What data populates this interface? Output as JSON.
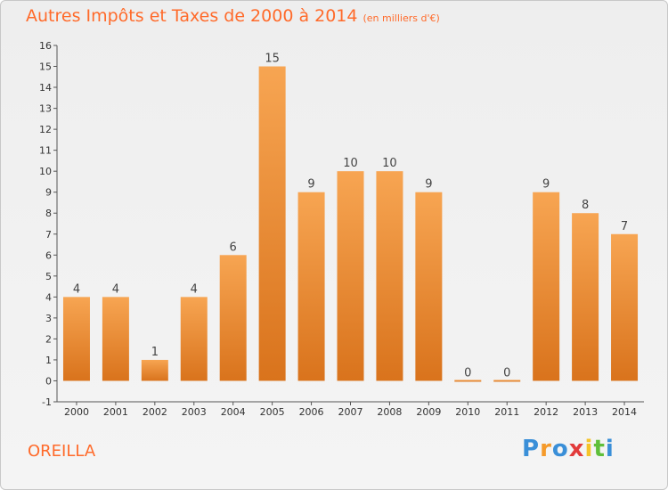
{
  "title": {
    "main": "Autres Impôts et Taxes de 2000 à 2014",
    "unit": "(en milliers d'€)"
  },
  "commune": "OREILLA",
  "logo": [
    "P",
    "r",
    "o",
    "x",
    "i",
    "t",
    "i"
  ],
  "colors": {
    "accent": "#ff6a2a",
    "bar_top": "#f7a552",
    "bar_bottom": "#d9731c"
  },
  "chart_data": {
    "type": "bar",
    "categories": [
      "2000",
      "2001",
      "2002",
      "2003",
      "2004",
      "2005",
      "2006",
      "2007",
      "2008",
      "2009",
      "2010",
      "2011",
      "2012",
      "2013",
      "2014"
    ],
    "values": [
      4,
      4,
      1,
      4,
      6,
      15,
      9,
      10,
      10,
      9,
      0,
      0,
      9,
      8,
      7
    ],
    "ylim": [
      -1,
      16
    ],
    "yticks": [
      -1,
      0,
      1,
      2,
      3,
      4,
      5,
      6,
      7,
      8,
      9,
      10,
      11,
      12,
      13,
      14,
      15,
      16
    ],
    "grid": false
  }
}
